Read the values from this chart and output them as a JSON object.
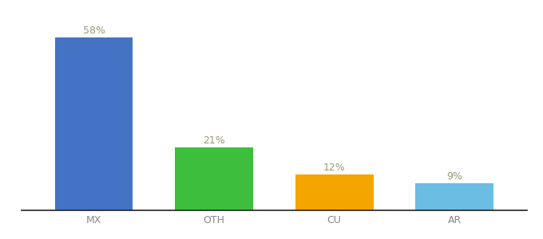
{
  "categories": [
    "MX",
    "OTH",
    "CU",
    "AR"
  ],
  "values": [
    58,
    21,
    12,
    9
  ],
  "labels": [
    "58%",
    "21%",
    "12%",
    "9%"
  ],
  "bar_colors": [
    "#4472C4",
    "#3DBF3D",
    "#F5A500",
    "#6BBDE3"
  ],
  "background_color": "#ffffff",
  "ylim": [
    0,
    65
  ],
  "label_fontsize": 9,
  "tick_fontsize": 9,
  "label_color": "#999977",
  "tick_color": "#888888",
  "bar_width": 0.65,
  "xlim": [
    -0.6,
    3.6
  ]
}
